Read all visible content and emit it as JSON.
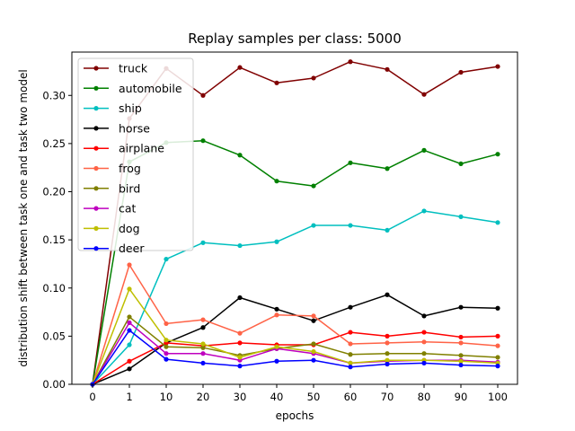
{
  "chart_data": {
    "type": "line",
    "title": "Replay samples per class: 5000",
    "xlabel": "epochs",
    "ylabel": "distribution shift between task one and task two model",
    "x": [
      "0",
      "1",
      "10",
      "20",
      "30",
      "40",
      "50",
      "60",
      "70",
      "80",
      "90",
      "100"
    ],
    "ylim": [
      0.0,
      0.345
    ],
    "yticks": [
      "0.00",
      "0.05",
      "0.10",
      "0.15",
      "0.20",
      "0.25",
      "0.30"
    ],
    "grid": false,
    "legend_position": "upper-left",
    "markers": "dot",
    "series": [
      {
        "name": "truck",
        "color": "#800000",
        "values": [
          0.0,
          0.276,
          0.328,
          0.3,
          0.329,
          0.313,
          0.318,
          0.335,
          0.327,
          0.301,
          0.324,
          0.33
        ]
      },
      {
        "name": "automobile",
        "color": "#008000",
        "values": [
          0.0,
          0.231,
          0.251,
          0.253,
          0.238,
          0.211,
          0.206,
          0.23,
          0.224,
          0.243,
          0.229,
          0.239
        ]
      },
      {
        "name": "ship",
        "color": "#00bfbf",
        "values": [
          0.0,
          0.041,
          0.13,
          0.147,
          0.144,
          0.148,
          0.165,
          0.165,
          0.16,
          0.18,
          0.174,
          0.168
        ]
      },
      {
        "name": "horse",
        "color": "#000000",
        "values": [
          0.0,
          0.016,
          0.043,
          0.059,
          0.09,
          0.078,
          0.066,
          0.08,
          0.093,
          0.071,
          0.08,
          0.079
        ]
      },
      {
        "name": "airplane",
        "color": "#ff0000",
        "values": [
          0.0,
          0.024,
          0.043,
          0.04,
          0.043,
          0.041,
          0.041,
          0.054,
          0.05,
          0.054,
          0.049,
          0.05
        ]
      },
      {
        "name": "frog",
        "color": "#ff6347",
        "values": [
          0.0,
          0.124,
          0.063,
          0.067,
          0.053,
          0.072,
          0.071,
          0.042,
          0.043,
          0.044,
          0.043,
          0.04
        ]
      },
      {
        "name": "bird",
        "color": "#808000",
        "values": [
          0.0,
          0.07,
          0.039,
          0.038,
          0.03,
          0.037,
          0.042,
          0.031,
          0.032,
          0.032,
          0.03,
          0.028
        ]
      },
      {
        "name": "cat",
        "color": "#bf00bf",
        "values": [
          0.0,
          0.064,
          0.032,
          0.032,
          0.025,
          0.037,
          0.032,
          0.022,
          0.024,
          0.025,
          0.025,
          0.023
        ]
      },
      {
        "name": "dog",
        "color": "#bfbf00",
        "values": [
          0.0,
          0.099,
          0.046,
          0.042,
          0.028,
          0.039,
          0.034,
          0.022,
          0.025,
          0.025,
          0.024,
          0.022
        ]
      },
      {
        "name": "deer",
        "color": "#0000ff",
        "values": [
          0.0,
          0.056,
          0.026,
          0.022,
          0.019,
          0.024,
          0.025,
          0.018,
          0.021,
          0.022,
          0.02,
          0.019
        ]
      }
    ]
  }
}
